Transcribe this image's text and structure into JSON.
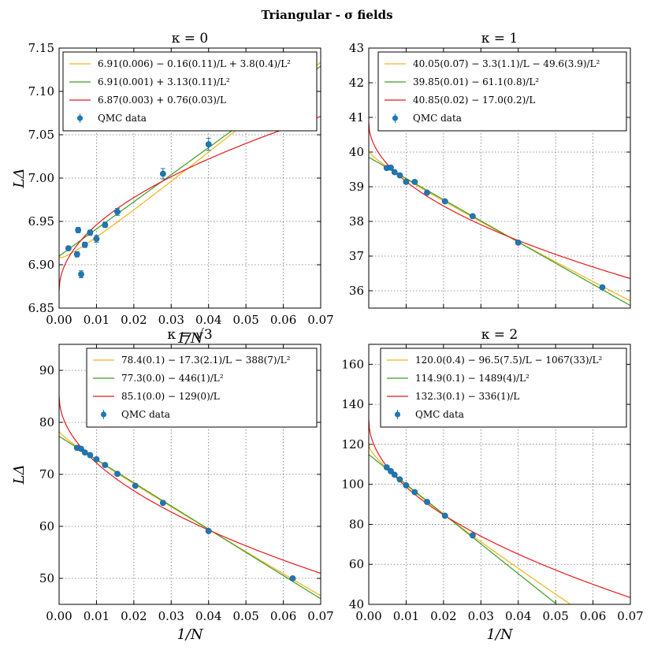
{
  "suptitle": "Triangular - σ fields",
  "xlabel": "1/N",
  "colors": {
    "quadratic_fit": "#f5b21b",
    "l2_fit": "#3a9d23",
    "l1_fit": "#e8191d",
    "qmc": "#1f77b4"
  },
  "chart_data": [
    {
      "type": "scatter",
      "title": "κ = 0",
      "xlim": [
        0,
        0.07
      ],
      "ylim": [
        6.85,
        7.15
      ],
      "xticks": [
        "0.00",
        "0.01",
        "0.02",
        "0.03",
        "0.04",
        "0.05",
        "0.06",
        "0.07"
      ],
      "yticks": [
        "6.85",
        "6.90",
        "6.95",
        "7.00",
        "7.05",
        "7.10",
        "7.15"
      ],
      "ytick_values": [
        6.85,
        6.9,
        6.95,
        7.0,
        7.05,
        7.1,
        7.15
      ],
      "ylabel": "LΔ",
      "fits": [
        {
          "kind": "quad",
          "name": "6.91(0.006) − 0.16(0.11)/L + 3.8(0.4)/L²",
          "a": 6.91,
          "b": -0.16,
          "c": 3.8
        },
        {
          "kind": "l2",
          "name": "6.91(0.001) + 3.13(0.11)/L²",
          "a": 6.91,
          "c": 3.13
        },
        {
          "kind": "l1",
          "name": "6.87(0.003) + 0.76(0.03)/L",
          "a": 6.87,
          "b": 0.76
        }
      ],
      "legend_data": "QMC data",
      "points": [
        {
          "x": 0.0025,
          "y": 6.919,
          "err": 0.002
        },
        {
          "x": 0.0048,
          "y": 6.912,
          "err": 0.003
        },
        {
          "x": 0.0051,
          "y": 6.94,
          "err": 0.003
        },
        {
          "x": 0.0059,
          "y": 6.889,
          "err": 0.004
        },
        {
          "x": 0.0069,
          "y": 6.923,
          "err": 0.003
        },
        {
          "x": 0.0083,
          "y": 6.937,
          "err": 0.003
        },
        {
          "x": 0.01,
          "y": 6.93,
          "err": 0.004
        },
        {
          "x": 0.0123,
          "y": 6.946,
          "err": 0.003
        },
        {
          "x": 0.0156,
          "y": 6.961,
          "err": 0.004
        },
        {
          "x": 0.0278,
          "y": 7.005,
          "err": 0.006
        },
        {
          "x": 0.04,
          "y": 7.039,
          "err": 0.007
        }
      ]
    },
    {
      "type": "scatter",
      "title": "κ = 1",
      "xlim": [
        0,
        0.07
      ],
      "ylim": [
        35.5,
        43
      ],
      "xticks": [],
      "yticks": [
        "36",
        "37",
        "38",
        "39",
        "40",
        "41",
        "42",
        "43"
      ],
      "ytick_values": [
        36,
        37,
        38,
        39,
        40,
        41,
        42,
        43
      ],
      "ylabel": "",
      "fits": [
        {
          "kind": "quad",
          "name": "40.05(0.07) − 3.3(1.1)/L − 49.6(3.9)/L²",
          "a": 40.05,
          "b": -3.3,
          "c": -49.6
        },
        {
          "kind": "l2",
          "name": "39.85(0.01) − 61.1(0.8)/L²",
          "a": 39.85,
          "c": -61.1
        },
        {
          "kind": "l1",
          "name": "40.85(0.02) − 17.0(0.2)/L",
          "a": 40.85,
          "b": -17.0
        }
      ],
      "legend_data": "QMC data",
      "points": [
        {
          "x": 0.0048,
          "y": 39.54,
          "err": 0.03
        },
        {
          "x": 0.0059,
          "y": 39.55,
          "err": 0.03
        },
        {
          "x": 0.0069,
          "y": 39.42,
          "err": 0.03
        },
        {
          "x": 0.0083,
          "y": 39.33,
          "err": 0.03
        },
        {
          "x": 0.01,
          "y": 39.14,
          "err": 0.03
        },
        {
          "x": 0.0123,
          "y": 39.14,
          "err": 0.03
        },
        {
          "x": 0.0156,
          "y": 38.83,
          "err": 0.03
        },
        {
          "x": 0.0204,
          "y": 38.58,
          "err": 0.03
        },
        {
          "x": 0.0278,
          "y": 38.15,
          "err": 0.03
        },
        {
          "x": 0.04,
          "y": 37.39,
          "err": 0.03
        },
        {
          "x": 0.0625,
          "y": 36.1,
          "err": 0.03
        }
      ]
    },
    {
      "type": "scatter",
      "title": "κ = √3",
      "xlim": [
        0,
        0.07
      ],
      "ylim": [
        45,
        95
      ],
      "xticks": [
        "0.00",
        "0.01",
        "0.02",
        "0.03",
        "0.04",
        "0.05",
        "0.06",
        "0.07"
      ],
      "yticks": [
        "50",
        "60",
        "70",
        "80",
        "90"
      ],
      "ytick_values": [
        50,
        60,
        70,
        80,
        90
      ],
      "ylabel": "LΔ",
      "fits": [
        {
          "kind": "quad",
          "name": "78.4(0.1) − 17.3(2.1)/L − 388(7)/L²",
          "a": 78.4,
          "b": -17.3,
          "c": -388
        },
        {
          "kind": "l2",
          "name": "77.3(0.0) − 446(1)/L²",
          "a": 77.3,
          "c": -446
        },
        {
          "kind": "l1",
          "name": "85.1(0.0) − 129(0)/L",
          "a": 85.1,
          "b": -129
        }
      ],
      "legend_data": "QMC data",
      "points": [
        {
          "x": 0.0048,
          "y": 75.1,
          "err": 0.2
        },
        {
          "x": 0.0059,
          "y": 74.9,
          "err": 0.2
        },
        {
          "x": 0.0069,
          "y": 74.2,
          "err": 0.2
        },
        {
          "x": 0.0083,
          "y": 73.7,
          "err": 0.2
        },
        {
          "x": 0.01,
          "y": 72.9,
          "err": 0.2
        },
        {
          "x": 0.0123,
          "y": 71.8,
          "err": 0.2
        },
        {
          "x": 0.0156,
          "y": 70.1,
          "err": 0.2
        },
        {
          "x": 0.0204,
          "y": 67.8,
          "err": 0.2
        },
        {
          "x": 0.0278,
          "y": 64.5,
          "err": 0.2
        },
        {
          "x": 0.04,
          "y": 59.1,
          "err": 0.2
        },
        {
          "x": 0.0625,
          "y": 50.0,
          "err": 0.2
        }
      ]
    },
    {
      "type": "scatter",
      "title": "κ = 2",
      "xlim": [
        0,
        0.07
      ],
      "ylim": [
        40,
        170
      ],
      "xticks": [
        "0.00",
        "0.01",
        "0.02",
        "0.03",
        "0.04",
        "0.05",
        "0.06",
        "0.07"
      ],
      "yticks": [
        "40",
        "60",
        "80",
        "100",
        "120",
        "140",
        "160"
      ],
      "ytick_values": [
        40,
        60,
        80,
        100,
        120,
        140,
        160
      ],
      "ylabel": "",
      "fits": [
        {
          "kind": "quad",
          "name": "120.0(0.4) − 96.5(7.5)/L − 1067(33)/L²",
          "a": 120.0,
          "b": -96.5,
          "c": -1067
        },
        {
          "kind": "l2",
          "name": "114.9(0.1) − 1489(4)/L²",
          "a": 114.9,
          "c": -1489
        },
        {
          "kind": "l1",
          "name": "132.3(0.1) − 336(1)/L",
          "a": 132.3,
          "b": -336
        }
      ],
      "legend_data": "QMC data",
      "points": [
        {
          "x": 0.0048,
          "y": 108.5,
          "err": 0.3
        },
        {
          "x": 0.0059,
          "y": 106.6,
          "err": 0.3
        },
        {
          "x": 0.0069,
          "y": 104.8,
          "err": 0.3
        },
        {
          "x": 0.0083,
          "y": 102.5,
          "err": 0.3
        },
        {
          "x": 0.01,
          "y": 99.5,
          "err": 0.3
        },
        {
          "x": 0.0123,
          "y": 96.1,
          "err": 0.3
        },
        {
          "x": 0.0156,
          "y": 91.2,
          "err": 0.3
        },
        {
          "x": 0.0204,
          "y": 84.3,
          "err": 0.3
        },
        {
          "x": 0.0278,
          "y": 74.5,
          "err": 0.3
        }
      ]
    }
  ]
}
